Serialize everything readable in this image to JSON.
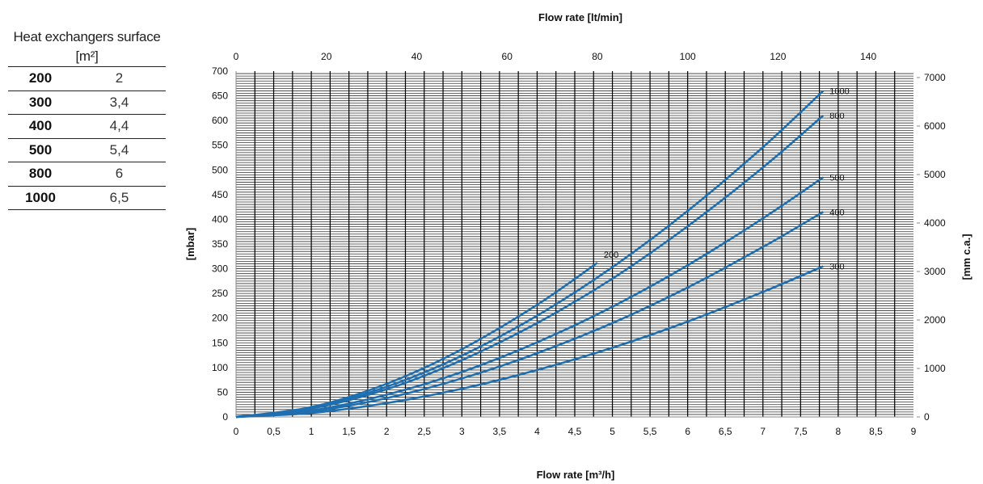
{
  "table": {
    "title": "Heat exchangers surface",
    "unit": "[m²]",
    "rows": [
      {
        "model": "200",
        "surface": "2"
      },
      {
        "model": "300",
        "surface": "3,4"
      },
      {
        "model": "400",
        "surface": "4,4"
      },
      {
        "model": "500",
        "surface": "5,4"
      },
      {
        "model": "800",
        "surface": "6"
      },
      {
        "model": "1000",
        "surface": "6,5"
      }
    ]
  },
  "chart_data": {
    "type": "line",
    "title_top": "Flow rate [lt/min]",
    "xlabel": "Flow rate [m³/h]",
    "ylabel": "[mbar]",
    "ylabel_right": "[mm c.a.]",
    "xlim": [
      0,
      9
    ],
    "ylim": [
      0,
      700
    ],
    "x_top_lim": [
      0,
      150
    ],
    "y_right_lim": [
      0,
      7000
    ],
    "x_ticks": [
      "0",
      "0,5",
      "1",
      "1,5",
      "2",
      "2,5",
      "3",
      "3,5",
      "4",
      "4,5",
      "5",
      "5,5",
      "6",
      "6,5",
      "7",
      "7,5",
      "8",
      "8,5",
      "9"
    ],
    "y_ticks": [
      "0",
      "50",
      "100",
      "150",
      "200",
      "250",
      "300",
      "350",
      "400",
      "450",
      "500",
      "550",
      "600",
      "650",
      "700"
    ],
    "x_top_ticks": [
      "0",
      "20",
      "40",
      "60",
      "80",
      "100",
      "120",
      "140"
    ],
    "y_right_ticks": [
      "0",
      "1000",
      "2000",
      "3000",
      "4000",
      "5000",
      "6000",
      "7000"
    ],
    "grid": true,
    "color": "#1f6fb0",
    "series": [
      {
        "name": "200",
        "x": [
          0,
          1,
          2,
          3,
          4,
          4.8
        ],
        "y": [
          0,
          20,
          67,
          137,
          227,
          312
        ]
      },
      {
        "name": "1000",
        "x": [
          0,
          1,
          2,
          3,
          4,
          5,
          6,
          7,
          7.8
        ],
        "y": [
          0,
          18,
          61,
          124,
          205,
          303,
          417,
          546,
          660
        ]
      },
      {
        "name": "800",
        "x": [
          0,
          1,
          2,
          3,
          4,
          5,
          6,
          7,
          7.8
        ],
        "y": [
          0,
          17,
          56,
          115,
          190,
          280,
          386,
          505,
          610
        ]
      },
      {
        "name": "500",
        "x": [
          0,
          1,
          2,
          3,
          4,
          5,
          6,
          7,
          7.8
        ],
        "y": [
          0,
          13,
          45,
          91,
          151,
          223,
          307,
          402,
          485
        ]
      },
      {
        "name": "400",
        "x": [
          0,
          1,
          2,
          3,
          4,
          5,
          6,
          7,
          7.8
        ],
        "y": [
          0,
          11,
          38,
          78,
          129,
          190,
          262,
          344,
          415
        ]
      },
      {
        "name": "300",
        "x": [
          0,
          1,
          2,
          3,
          4,
          5,
          6,
          7,
          7.8
        ],
        "y": [
          0,
          8,
          28,
          57,
          95,
          140,
          193,
          253,
          305
        ]
      }
    ]
  }
}
